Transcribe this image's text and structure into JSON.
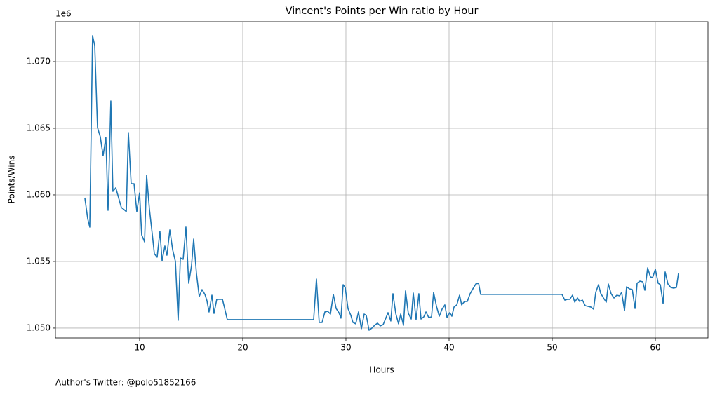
{
  "chart_data": {
    "type": "line",
    "title": "Vincent's Points per Win ratio by Hour",
    "x_label": "Hours",
    "y_label": "Points/Wins",
    "y_offset_label": "1e6",
    "footnote": "Author's Twitter: @polo51852166",
    "xlim": [
      1.84,
      65.1
    ],
    "ylim": [
      1.04926,
      1.073
    ],
    "xticks": [
      10,
      20,
      30,
      40,
      50,
      60
    ],
    "yticks": [
      {
        "value": 1.05,
        "label": "1.050"
      },
      {
        "value": 1.055,
        "label": "1.055"
      },
      {
        "value": 1.06,
        "label": "1.060"
      },
      {
        "value": 1.065,
        "label": "1.065"
      },
      {
        "value": 1.07,
        "label": "1.070"
      }
    ],
    "grid": true,
    "series": [
      {
        "color": "#1f77b4",
        "x": [
          4.69,
          4.97,
          5.17,
          5.44,
          5.65,
          5.92,
          6.19,
          6.46,
          6.73,
          6.94,
          7.21,
          7.41,
          7.69,
          7.96,
          8.23,
          8.5,
          8.71,
          8.91,
          9.18,
          9.46,
          9.73,
          10.0,
          10.2,
          10.48,
          10.68,
          10.95,
          11.22,
          11.43,
          11.7,
          11.97,
          12.18,
          12.45,
          12.65,
          12.93,
          13.2,
          13.47,
          13.74,
          13.95,
          14.22,
          14.49,
          14.76,
          15.03,
          15.24,
          15.51,
          15.78,
          16.05,
          16.33,
          16.53,
          16.73,
          17.01,
          17.21,
          17.48,
          17.76,
          18.03,
          18.23,
          18.5,
          26.87,
          27.14,
          27.41,
          27.69,
          27.96,
          28.23,
          28.5,
          28.78,
          29.05,
          29.32,
          29.52,
          29.73,
          29.93,
          30.2,
          30.48,
          30.68,
          30.95,
          31.22,
          31.5,
          31.77,
          31.97,
          32.24,
          32.52,
          32.79,
          33.06,
          33.33,
          33.61,
          33.81,
          34.08,
          34.35,
          34.56,
          34.83,
          35.1,
          35.31,
          35.58,
          35.78,
          36.05,
          36.33,
          36.53,
          36.8,
          37.07,
          37.28,
          37.55,
          37.76,
          38.03,
          38.3,
          38.5,
          38.78,
          39.05,
          39.32,
          39.59,
          39.8,
          40.07,
          40.27,
          40.48,
          40.75,
          41.02,
          41.22,
          41.5,
          41.77,
          42.04,
          42.31,
          42.59,
          42.86,
          43.06,
          50.95,
          51.22,
          51.5,
          51.7,
          51.97,
          52.18,
          52.45,
          52.65,
          52.93,
          53.2,
          53.47,
          53.74,
          54.01,
          54.22,
          54.49,
          54.69,
          54.97,
          55.24,
          55.44,
          55.71,
          55.99,
          56.26,
          56.53,
          56.73,
          57.01,
          57.21,
          57.48,
          57.76,
          58.03,
          58.23,
          58.5,
          58.78,
          58.98,
          59.25,
          59.52,
          59.73,
          60.0,
          60.27,
          60.48,
          60.75,
          60.95,
          61.22,
          61.5,
          61.77,
          62.04,
          62.24
        ],
        "values": [
          1.05979,
          1.05821,
          1.05758,
          1.07195,
          1.07121,
          1.06505,
          1.06436,
          1.06294,
          1.06431,
          1.05884,
          1.06705,
          1.06026,
          1.06053,
          1.05979,
          1.05905,
          1.05889,
          1.05874,
          1.06468,
          1.06084,
          1.06084,
          1.05874,
          1.06015,
          1.057,
          1.05647,
          1.06147,
          1.05895,
          1.0571,
          1.05558,
          1.05532,
          1.05726,
          1.05505,
          1.05616,
          1.05547,
          1.05737,
          1.05589,
          1.055,
          1.05058,
          1.05526,
          1.05516,
          1.05758,
          1.05337,
          1.05468,
          1.05668,
          1.0541,
          1.05237,
          1.05289,
          1.05253,
          1.05205,
          1.05121,
          1.05247,
          1.0511,
          1.05216,
          1.05216,
          1.05216,
          1.05153,
          1.05063,
          1.05063,
          1.05368,
          1.05042,
          1.05042,
          1.05121,
          1.05126,
          1.05105,
          1.05253,
          1.05147,
          1.05116,
          1.05074,
          1.05326,
          1.05305,
          1.05147,
          1.05095,
          1.05042,
          1.05032,
          1.05121,
          1.04995,
          1.05105,
          1.05095,
          1.04984,
          1.05,
          1.05021,
          1.05037,
          1.05016,
          1.05026,
          1.05063,
          1.05116,
          1.05053,
          1.05258,
          1.0511,
          1.05032,
          1.05105,
          1.05021,
          1.05279,
          1.0511,
          1.05068,
          1.05263,
          1.05063,
          1.05258,
          1.05068,
          1.05084,
          1.05121,
          1.05079,
          1.05084,
          1.05268,
          1.05163,
          1.05089,
          1.05142,
          1.05174,
          1.05079,
          1.05116,
          1.05089,
          1.05158,
          1.05174,
          1.05247,
          1.05174,
          1.052,
          1.052,
          1.05258,
          1.05295,
          1.05331,
          1.05337,
          1.05253,
          1.05253,
          1.0521,
          1.05216,
          1.05216,
          1.05247,
          1.05195,
          1.05226,
          1.052,
          1.0521,
          1.05168,
          1.05163,
          1.05158,
          1.05142,
          1.05268,
          1.05326,
          1.05263,
          1.05226,
          1.05195,
          1.05331,
          1.05258,
          1.05226,
          1.05247,
          1.05242,
          1.05268,
          1.05132,
          1.0531,
          1.05295,
          1.05289,
          1.05147,
          1.05337,
          1.05352,
          1.05347,
          1.05284,
          1.05452,
          1.05384,
          1.05379,
          1.05442,
          1.05337,
          1.05326,
          1.05184,
          1.05421,
          1.05331,
          1.05305,
          1.053,
          1.05305,
          1.0541
        ]
      }
    ]
  }
}
